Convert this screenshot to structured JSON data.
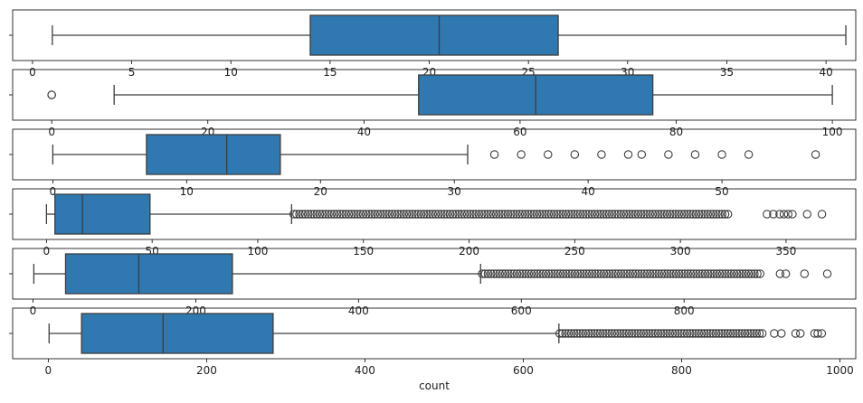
{
  "chart_data": [
    {
      "type": "box",
      "orientation": "horizontal",
      "xlim": [
        -1,
        41.5
      ],
      "x_ticks": [
        0,
        5,
        10,
        15,
        20,
        25,
        30,
        35,
        40
      ],
      "x_ticks_occluded": true,
      "min": 1,
      "q1": 14,
      "median": 20.5,
      "q3": 26.5,
      "max": 41,
      "outliers": []
    },
    {
      "type": "box",
      "orientation": "horizontal",
      "xlim": [
        -5,
        103
      ],
      "x_ticks": [
        0,
        20,
        40,
        60,
        80,
        100
      ],
      "x_ticks_occluded": true,
      "min": 8,
      "q1": 47,
      "median": 62,
      "q3": 77,
      "max": 100,
      "outliers": [
        0,
        0
      ]
    },
    {
      "type": "box",
      "orientation": "horizontal",
      "xlim": [
        -3,
        60
      ],
      "x_ticks": [
        0,
        10,
        20,
        30,
        40,
        50
      ],
      "x_ticks_occluded": true,
      "min": 0,
      "q1": 7,
      "median": 13,
      "q3": 17,
      "max": 31,
      "outliers": [
        33,
        35,
        37,
        39,
        41,
        43,
        44,
        46,
        48,
        50,
        52,
        57
      ]
    },
    {
      "type": "box",
      "orientation": "horizontal",
      "xlim": [
        -16,
        383
      ],
      "x_ticks": [
        0,
        50,
        100,
        150,
        200,
        250,
        300,
        350
      ],
      "x_ticks_occluded": true,
      "min": 0,
      "q1": 4,
      "median": 17,
      "q3": 49,
      "max": 116,
      "outliers_dense_from": 117,
      "outliers_dense_to": 323,
      "outliers": [
        341,
        344,
        347,
        349,
        351,
        353,
        360,
        367
      ]
    },
    {
      "type": "box",
      "orientation": "horizontal",
      "xlim": [
        -25,
        1011
      ],
      "x_ticks": [
        0,
        200,
        400,
        600,
        800
      ],
      "x_ticks_occluded": true,
      "min": 1,
      "q1": 40,
      "median": 130,
      "q3": 245,
      "max": 550,
      "outliers_dense_from": 552,
      "outliers_dense_to": 897,
      "outliers": [
        918,
        925,
        948,
        976
      ]
    },
    {
      "type": "box",
      "orientation": "horizontal",
      "xlabel": "count",
      "xlim": [
        -45,
        1020
      ],
      "x_ticks": [
        0,
        200,
        400,
        600,
        800,
        1000
      ],
      "min": 1,
      "q1": 42,
      "median": 145,
      "q3": 284,
      "max": 645,
      "outliers_dense_from": 646,
      "outliers_dense_to": 904,
      "outliers": [
        917,
        926,
        944,
        950,
        968,
        972,
        977
      ]
    }
  ]
}
